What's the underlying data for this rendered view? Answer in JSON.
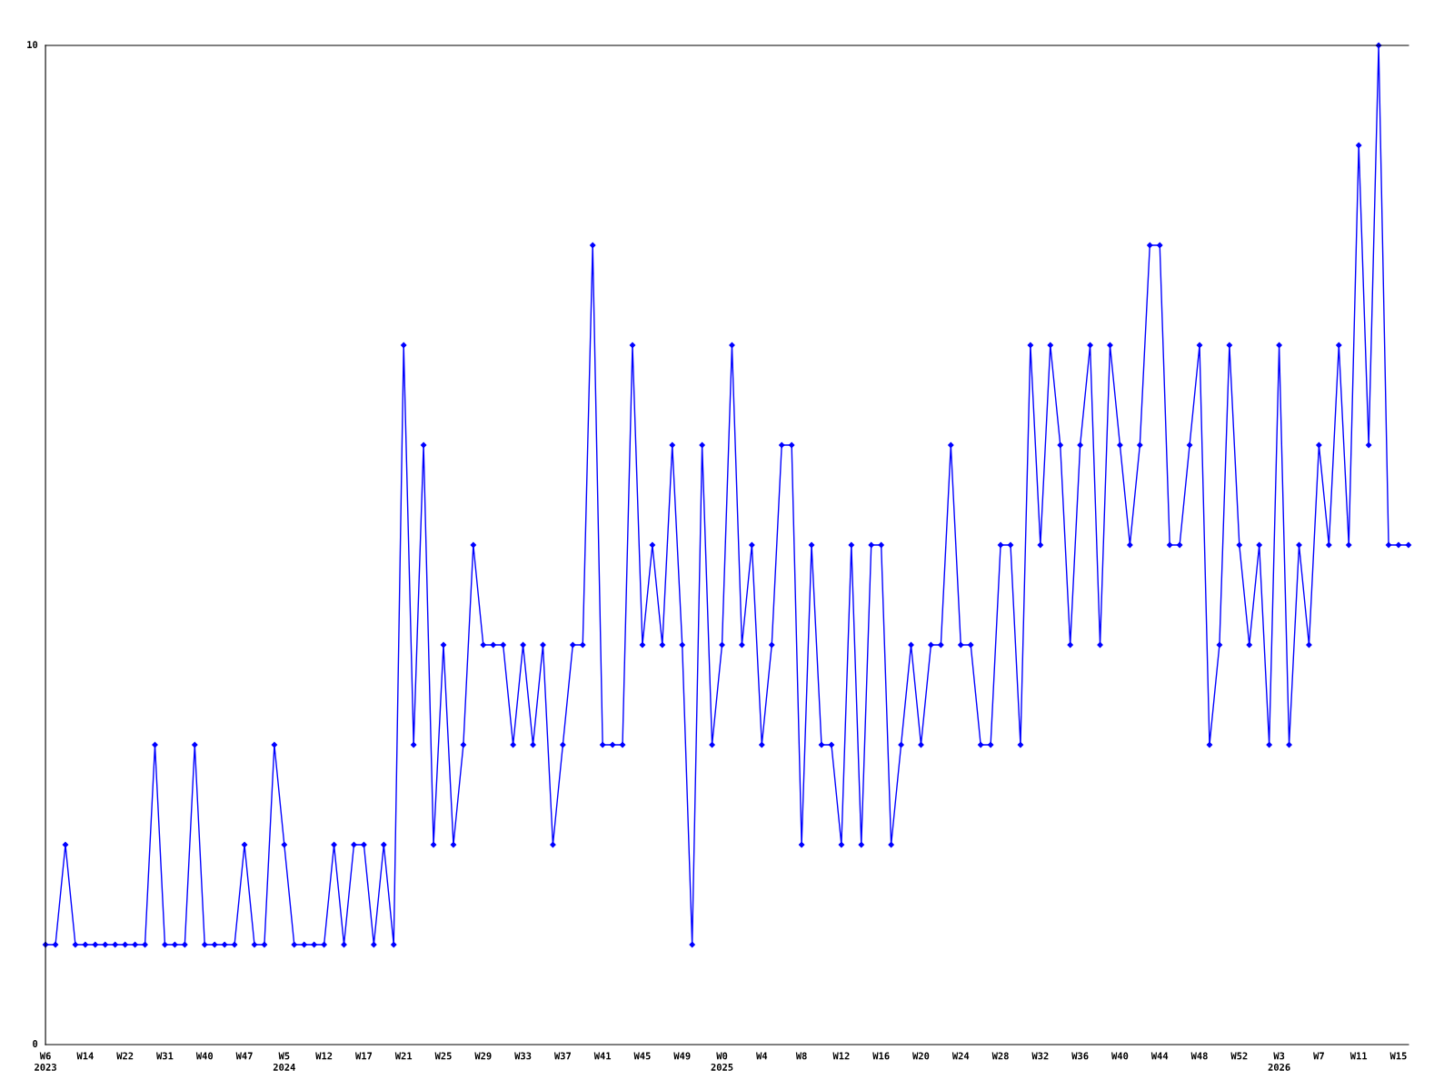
{
  "chart_data": {
    "type": "line",
    "categories": [
      "W6\n2023",
      null,
      null,
      null,
      "W14",
      null,
      null,
      null,
      "W22",
      null,
      null,
      null,
      "W31",
      null,
      null,
      null,
      "W40",
      null,
      null,
      null,
      "W47",
      null,
      null,
      null,
      "W5\n2024",
      null,
      null,
      null,
      "W12",
      null,
      null,
      null,
      "W17",
      null,
      null,
      null,
      "W21",
      null,
      null,
      null,
      "W25",
      null,
      null,
      null,
      "W29",
      null,
      null,
      null,
      "W33",
      null,
      null,
      null,
      "W37",
      null,
      null,
      null,
      "W41",
      null,
      null,
      null,
      "W45",
      null,
      null,
      null,
      "W49",
      null,
      null,
      null,
      "W0\n2025",
      null,
      null,
      null,
      "W4",
      null,
      null,
      null,
      "W8",
      null,
      null,
      null,
      "W12",
      null,
      null,
      null,
      "W16",
      null,
      null,
      null,
      "W20",
      null,
      null,
      null,
      "W24",
      null,
      null,
      null,
      "W28",
      null,
      null,
      null,
      "W32",
      null,
      null,
      null,
      "W36",
      null,
      null,
      null,
      "W40",
      null,
      null,
      null,
      "W44",
      null,
      null,
      null,
      "W48",
      null,
      null,
      null,
      "W52",
      null,
      null,
      null,
      "W3\n2026",
      null,
      null,
      null,
      "W7",
      null,
      null,
      null,
      "W11",
      null,
      null,
      null,
      "W15",
      null
    ],
    "series": [
      {
        "color": "#0000ff",
        "values": [
          1,
          1,
          2,
          1,
          1,
          1,
          1,
          1,
          1,
          1,
          1,
          3,
          1,
          1,
          1,
          3,
          1,
          1,
          1,
          1,
          2,
          1,
          1,
          3,
          2,
          1,
          1,
          1,
          1,
          2,
          1,
          2,
          2,
          1,
          2,
          1,
          7,
          3,
          6,
          2,
          4,
          2,
          3,
          5,
          4,
          4,
          4,
          3,
          4,
          3,
          4,
          2,
          3,
          4,
          4,
          8,
          3,
          3,
          3,
          7,
          4,
          5,
          4,
          6,
          4,
          1,
          6,
          3,
          4,
          7,
          4,
          5,
          3,
          4,
          6,
          6,
          2,
          5,
          3,
          3,
          2,
          5,
          2,
          5,
          5,
          2,
          3,
          4,
          3,
          4,
          4,
          6,
          4,
          4,
          3,
          3,
          5,
          5,
          3,
          7,
          5,
          7,
          6,
          4,
          6,
          7,
          4,
          7,
          6,
          5,
          6,
          8,
          8,
          5,
          5,
          6,
          7,
          3,
          4,
          7,
          5,
          4,
          5,
          3,
          7,
          3,
          5,
          4,
          6,
          5,
          7,
          5,
          9,
          6,
          10,
          5,
          5,
          5
        ]
      }
    ],
    "ylim": [
      0,
      10
    ],
    "yticks": [
      0,
      10
    ],
    "grid": false,
    "marker": "diamond",
    "line_style": "solid"
  }
}
